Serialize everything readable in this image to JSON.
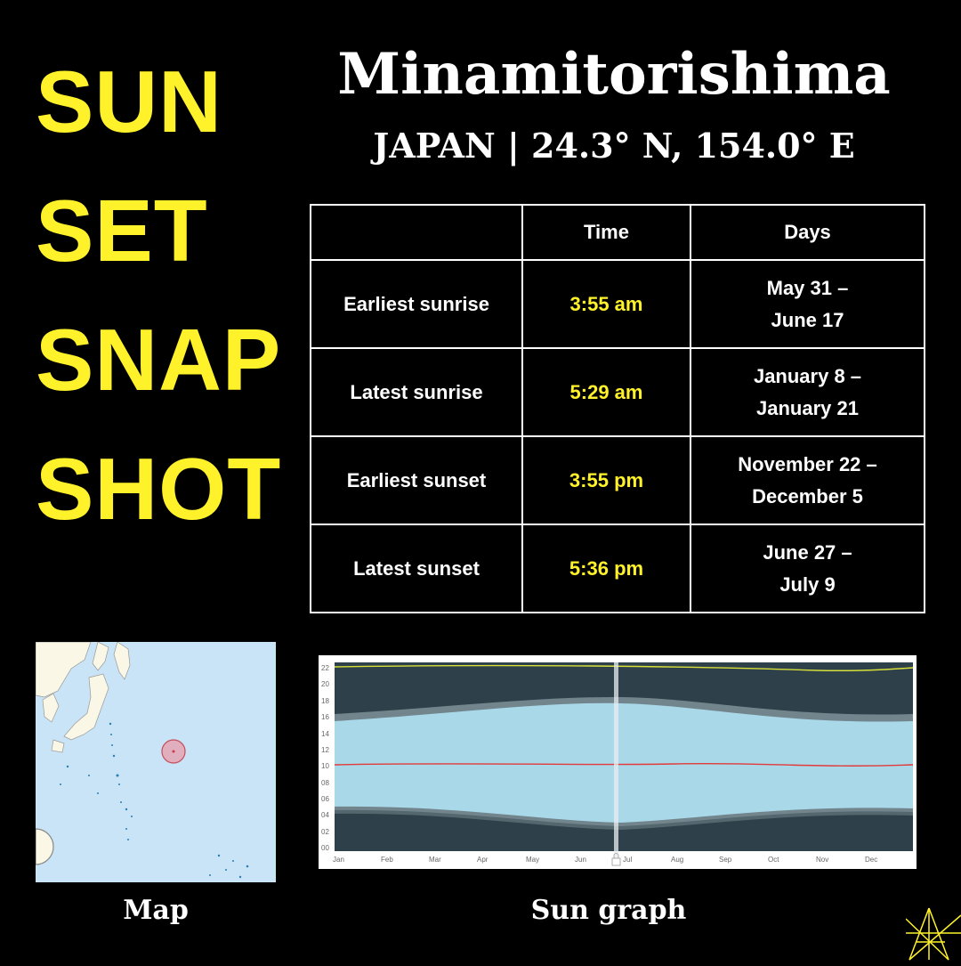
{
  "side_words": [
    "SUN",
    "SET",
    "SNAP",
    "SHOT"
  ],
  "location": {
    "name": "Minamitorishima",
    "subtitle": "JAPAN | 24.3° N, 154.0° E"
  },
  "table": {
    "headers": [
      "",
      "Time",
      "Days"
    ],
    "rows": [
      {
        "label": "Earliest sunrise",
        "time": "3:55 am",
        "days_1": "May 31 –",
        "days_2": "June 17"
      },
      {
        "label": "Latest sunrise",
        "time": "5:29 am",
        "days_1": "January 8 –",
        "days_2": "January 21"
      },
      {
        "label": "Earliest sunset",
        "time": "3:55 pm",
        "days_1": "November 22 –",
        "days_2": "December 5"
      },
      {
        "label": "Latest sunset",
        "time": "5:36 pm",
        "days_1": "June 27 –",
        "days_2": "July 9"
      }
    ]
  },
  "captions": {
    "map": "Map",
    "graph": "Sun graph"
  },
  "graph": {
    "y_ticks": [
      "22",
      "20",
      "18",
      "16",
      "14",
      "12",
      "10",
      "08",
      "06",
      "04",
      "02",
      "00"
    ],
    "months": [
      "Jan",
      "Feb",
      "Mar",
      "Apr",
      "May",
      "Jun",
      "Jul",
      "Aug",
      "Sep",
      "Oct",
      "Nov",
      "Dec"
    ]
  },
  "colors": {
    "accent": "#fff22a",
    "background": "#000000",
    "day": "#a9d8e8",
    "night": "#2e4049"
  },
  "icons": {
    "map_marker": "circle-marker-icon",
    "logo": "sunburst-logo-icon"
  }
}
